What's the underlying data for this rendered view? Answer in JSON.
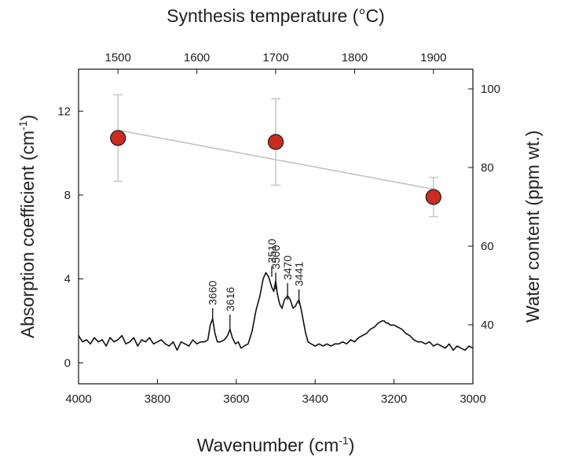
{
  "chart_data": {
    "type": "line",
    "axes": {
      "bottom": {
        "label": "Wavenumber (cm",
        "label_sup": "-1",
        "label_end": ")",
        "range": [
          4000,
          3000
        ],
        "reversed": true,
        "ticks": [
          "4000",
          "3800",
          "3600",
          "3400",
          "3200",
          "3000"
        ]
      },
      "top": {
        "label": "Synthesis temperature (°C)",
        "range": [
          1450,
          1950
        ],
        "ticks": [
          "1500",
          "1600",
          "1700",
          "1800",
          "1900"
        ]
      },
      "left": {
        "label": "Absorption coefficient (cm",
        "label_sup": "-1",
        "label_end": ")",
        "range": [
          -1,
          14
        ],
        "ticks": [
          "0",
          "4",
          "8",
          "12"
        ]
      },
      "right": {
        "label": "Water content (ppm wt.)",
        "range": [
          25,
          105
        ],
        "ticks": [
          "40",
          "60",
          "80",
          "100"
        ]
      }
    },
    "series": [
      {
        "type": "line",
        "axes": [
          "bottom",
          "left"
        ],
        "color": "#111111",
        "x": [
          4000,
          3990,
          3980,
          3970,
          3960,
          3950,
          3940,
          3930,
          3920,
          3910,
          3900,
          3890,
          3880,
          3870,
          3860,
          3850,
          3840,
          3830,
          3820,
          3810,
          3800,
          3790,
          3780,
          3770,
          3760,
          3750,
          3740,
          3730,
          3720,
          3710,
          3700,
          3690,
          3680,
          3672,
          3666,
          3660,
          3654,
          3648,
          3640,
          3630,
          3622,
          3616,
          3610,
          3602,
          3595,
          3588,
          3580,
          3570,
          3560,
          3550,
          3540,
          3532,
          3525,
          3518,
          3510,
          3505,
          3500,
          3496,
          3490,
          3484,
          3478,
          3470,
          3463,
          3456,
          3450,
          3445,
          3441,
          3436,
          3430,
          3424,
          3418,
          3410,
          3400,
          3390,
          3380,
          3370,
          3360,
          3350,
          3340,
          3330,
          3320,
          3310,
          3300,
          3290,
          3280,
          3270,
          3260,
          3250,
          3240,
          3230,
          3225,
          3220,
          3215,
          3210,
          3200,
          3190,
          3180,
          3170,
          3160,
          3150,
          3140,
          3130,
          3120,
          3110,
          3100,
          3090,
          3080,
          3070,
          3060,
          3050,
          3040,
          3030,
          3020,
          3010,
          3000
        ],
        "y": [
          1.3,
          1.0,
          1.1,
          0.9,
          1.2,
          1.0,
          1.1,
          0.8,
          1.2,
          1.0,
          1.1,
          1.3,
          0.9,
          1.0,
          1.2,
          0.8,
          1.1,
          1.0,
          1.2,
          0.9,
          1.0,
          1.1,
          0.9,
          0.8,
          1.0,
          0.6,
          1.0,
          0.9,
          0.8,
          1.1,
          0.9,
          1.0,
          1.0,
          1.1,
          1.8,
          2.1,
          1.4,
          1.0,
          1.0,
          1.1,
          1.3,
          1.6,
          1.2,
          0.9,
          1.0,
          0.7,
          0.8,
          0.9,
          1.5,
          2.5,
          3.2,
          4.0,
          4.3,
          4.1,
          3.6,
          3.4,
          3.9,
          3.3,
          2.8,
          2.6,
          3.0,
          3.2,
          3.0,
          2.6,
          2.7,
          2.9,
          3.0,
          2.6,
          2.0,
          1.4,
          1.0,
          0.9,
          0.8,
          0.9,
          0.8,
          0.9,
          0.8,
          0.9,
          0.9,
          1.0,
          0.9,
          1.1,
          1.0,
          1.2,
          1.3,
          1.4,
          1.6,
          1.7,
          1.9,
          2.0,
          2.0,
          1.9,
          1.9,
          1.8,
          1.8,
          1.7,
          1.6,
          1.4,
          1.3,
          1.1,
          1.0,
          1.0,
          0.9,
          1.0,
          0.8,
          0.9,
          0.8,
          0.7,
          0.9,
          0.6,
          0.8,
          0.7,
          0.6,
          0.8,
          0.7
        ]
      },
      {
        "type": "scatter",
        "axes": [
          "top",
          "right"
        ],
        "marker_color": "#cc2b1d",
        "marker_edge": "#222222",
        "errorbar_color": "#c9c9c9",
        "x": [
          1500,
          1700,
          1900
        ],
        "y": [
          87.5,
          86.5,
          72.5
        ],
        "yerr": [
          11,
          11,
          5
        ]
      },
      {
        "type": "line",
        "role": "fit",
        "axes": [
          "top",
          "right"
        ],
        "color": "#c2c2c2",
        "x": [
          1500,
          1900
        ],
        "y": [
          89.5,
          74.5
        ]
      }
    ],
    "annotations": [
      {
        "text": "3660",
        "x": 3660,
        "tick_y": [
          2.0,
          2.6
        ]
      },
      {
        "text": "3616",
        "x": 3616,
        "tick_y": [
          1.5,
          2.3
        ]
      },
      {
        "text": "3510",
        "x": 3510,
        "tick_y": [
          4.1,
          4.6
        ]
      },
      {
        "text": "3500",
        "x": 3500,
        "tick_y": [
          3.5,
          4.3
        ]
      },
      {
        "text": "3470",
        "x": 3470,
        "tick_y": [
          3.0,
          3.8
        ]
      },
      {
        "text": "3441",
        "x": 3441,
        "tick_y": [
          2.8,
          3.5
        ]
      }
    ],
    "grid": false,
    "legend": "none"
  }
}
